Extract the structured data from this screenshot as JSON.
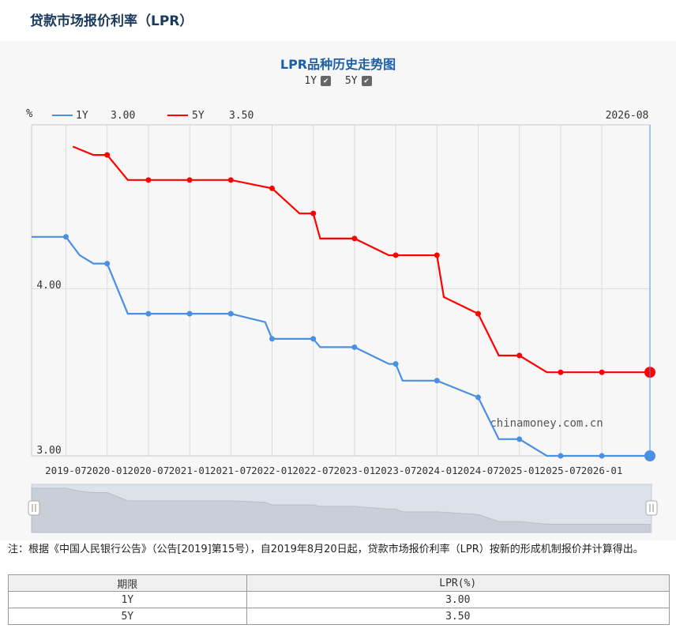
{
  "page_title": "贷款市场报价利率（LPR）",
  "chart_toggles": [
    {
      "label": "1Y",
      "checked": true
    },
    {
      "label": "5Y",
      "checked": true
    }
  ],
  "watermark": "chinamoney.com.cn",
  "chart_data": {
    "type": "line",
    "title": "LPR品种历史走势图",
    "ylabel": "%",
    "yticks": [
      "4.00",
      "3.00"
    ],
    "ylim": [
      3.0,
      4.98
    ],
    "xlim": [
      "2019-02",
      "2026-08"
    ],
    "xticks": [
      "2019-07",
      "2020-01",
      "2020-07",
      "2021-01",
      "2021-07",
      "2022-01",
      "2022-07",
      "2023-01",
      "2023-07",
      "2024-01",
      "2024-07",
      "2025-01",
      "2025-07",
      "2026-01"
    ],
    "cursor_label": "2026-08",
    "grid": true,
    "legend": "top-left",
    "series": [
      {
        "name": "1Y",
        "legend_value": "3.00",
        "color": "#4a90e2",
        "points": [
          [
            "2019-02",
            4.31
          ],
          [
            "2019-07",
            4.31
          ],
          [
            "2019-09",
            4.2
          ],
          [
            "2019-11",
            4.15
          ],
          [
            "2020-01",
            4.15
          ],
          [
            "2020-02",
            4.05
          ],
          [
            "2020-04",
            3.85
          ],
          [
            "2020-07",
            3.85
          ],
          [
            "2021-01",
            3.85
          ],
          [
            "2021-07",
            3.85
          ],
          [
            "2021-12",
            3.8
          ],
          [
            "2022-01",
            3.7
          ],
          [
            "2022-07",
            3.7
          ],
          [
            "2022-08",
            3.65
          ],
          [
            "2023-01",
            3.65
          ],
          [
            "2023-06",
            3.55
          ],
          [
            "2023-07",
            3.55
          ],
          [
            "2023-08",
            3.45
          ],
          [
            "2024-01",
            3.45
          ],
          [
            "2024-07",
            3.35
          ],
          [
            "2024-10",
            3.1
          ],
          [
            "2025-01",
            3.1
          ],
          [
            "2025-05",
            3.0
          ],
          [
            "2025-07",
            3.0
          ],
          [
            "2026-01",
            3.0
          ],
          [
            "2026-08",
            3.0
          ]
        ]
      },
      {
        "name": "5Y",
        "legend_value": "3.50",
        "color": "#ff0000",
        "points": [
          [
            "2019-08",
            4.85
          ],
          [
            "2019-11",
            4.8
          ],
          [
            "2020-01",
            4.8
          ],
          [
            "2020-02",
            4.75
          ],
          [
            "2020-04",
            4.65
          ],
          [
            "2020-07",
            4.65
          ],
          [
            "2021-01",
            4.65
          ],
          [
            "2021-07",
            4.65
          ],
          [
            "2022-01",
            4.6
          ],
          [
            "2022-05",
            4.45
          ],
          [
            "2022-07",
            4.45
          ],
          [
            "2022-08",
            4.3
          ],
          [
            "2023-01",
            4.3
          ],
          [
            "2023-06",
            4.2
          ],
          [
            "2023-07",
            4.2
          ],
          [
            "2024-01",
            4.2
          ],
          [
            "2024-02",
            3.95
          ],
          [
            "2024-07",
            3.85
          ],
          [
            "2024-10",
            3.6
          ],
          [
            "2025-01",
            3.6
          ],
          [
            "2025-05",
            3.5
          ],
          [
            "2025-07",
            3.5
          ],
          [
            "2026-01",
            3.5
          ],
          [
            "2026-08",
            3.5
          ]
        ]
      }
    ]
  },
  "note": "注：根据《中国人民银行公告》（公告[2019]第15号），自2019年8月20日起，贷款市场报价利率（LPR）按新的形成机制报价并计算得出。",
  "table": {
    "headers": [
      "期限",
      "LPR(%)"
    ],
    "rows": [
      [
        "1Y",
        "3.00"
      ],
      [
        "5Y",
        "3.50"
      ]
    ]
  }
}
